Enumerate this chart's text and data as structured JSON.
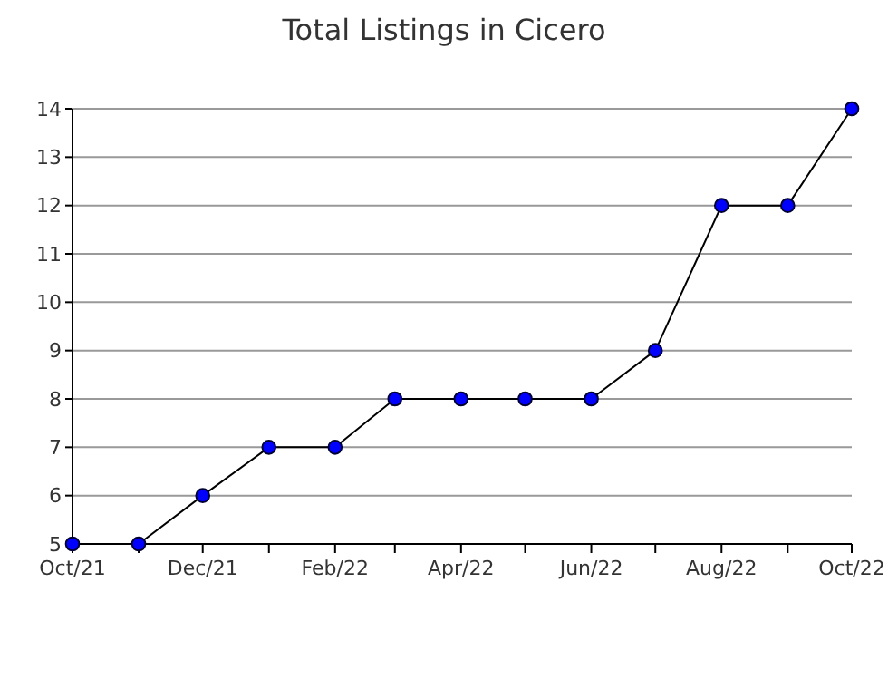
{
  "chart_data": {
    "type": "line",
    "title": "Total Listings in Cicero",
    "x": [
      "2021-10",
      "2021-11",
      "2021-12",
      "2022-01",
      "2022-02",
      "2022-03",
      "2022-04",
      "2022-05",
      "2022-06",
      "2022-07",
      "2022-08",
      "2022-09",
      "2022-10"
    ],
    "series": [
      {
        "color": "#0000ff",
        "values": [
          5,
          5,
          6,
          7,
          7,
          8,
          8,
          8,
          8,
          9,
          12,
          12,
          14
        ]
      }
    ],
    "xlim": [
      "2021-10",
      "2022-10"
    ],
    "xticks": [
      {
        "value": "2021-10",
        "label": "Oct/21"
      },
      {
        "value": "2021-11",
        "label": null
      },
      {
        "value": "2021-12",
        "label": "Dec/21"
      },
      {
        "value": "2022-01",
        "label": null
      },
      {
        "value": "2022-02",
        "label": "Feb/22"
      },
      {
        "value": "2022-03",
        "label": null
      },
      {
        "value": "2022-04",
        "label": "Apr/22"
      },
      {
        "value": "2022-05",
        "label": null
      },
      {
        "value": "2022-06",
        "label": "Jun/22"
      },
      {
        "value": "2022-07",
        "label": null
      },
      {
        "value": "2022-08",
        "label": "Aug/22"
      },
      {
        "value": "2022-09",
        "label": null
      },
      {
        "value": "2022-10",
        "label": "Oct/22"
      }
    ],
    "ylim": [
      5,
      14
    ],
    "yticks": [
      5,
      6,
      7,
      8,
      9,
      10,
      11,
      12,
      13,
      14
    ],
    "grid": "y",
    "marker": "circle",
    "line_style": "solid"
  }
}
